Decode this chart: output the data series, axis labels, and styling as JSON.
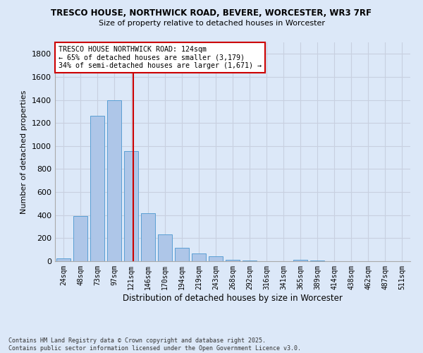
{
  "title_line1": "TRESCO HOUSE, NORTHWICK ROAD, BEVERE, WORCESTER, WR3 7RF",
  "title_line2": "Size of property relative to detached houses in Worcester",
  "xlabel": "Distribution of detached houses by size in Worcester",
  "ylabel": "Number of detached properties",
  "categories": [
    "24sqm",
    "48sqm",
    "73sqm",
    "97sqm",
    "121sqm",
    "146sqm",
    "170sqm",
    "194sqm",
    "219sqm",
    "243sqm",
    "268sqm",
    "292sqm",
    "316sqm",
    "341sqm",
    "365sqm",
    "389sqm",
    "414sqm",
    "438sqm",
    "462sqm",
    "487sqm",
    "511sqm"
  ],
  "values": [
    25,
    390,
    1260,
    1400,
    955,
    415,
    235,
    115,
    65,
    40,
    15,
    8,
    3,
    2,
    15,
    5,
    2,
    1,
    0,
    0,
    0
  ],
  "bar_color": "#aec6e8",
  "bar_edge_color": "#5a9fd4",
  "grid_color": "#c8d0e0",
  "background_color": "#dce8f8",
  "annotation_text": "TRESCO HOUSE NORTHWICK ROAD: 124sqm\n← 65% of detached houses are smaller (3,179)\n34% of semi-detached houses are larger (1,671) →",
  "annotation_box_color": "#ffffff",
  "annotation_box_edge_color": "#cc0000",
  "vline_color": "#cc0000",
  "ylim": [
    0,
    1900
  ],
  "yticks": [
    0,
    200,
    400,
    600,
    800,
    1000,
    1200,
    1400,
    1600,
    1800
  ],
  "footnote": "Contains HM Land Registry data © Crown copyright and database right 2025.\nContains public sector information licensed under the Open Government Licence v3.0."
}
